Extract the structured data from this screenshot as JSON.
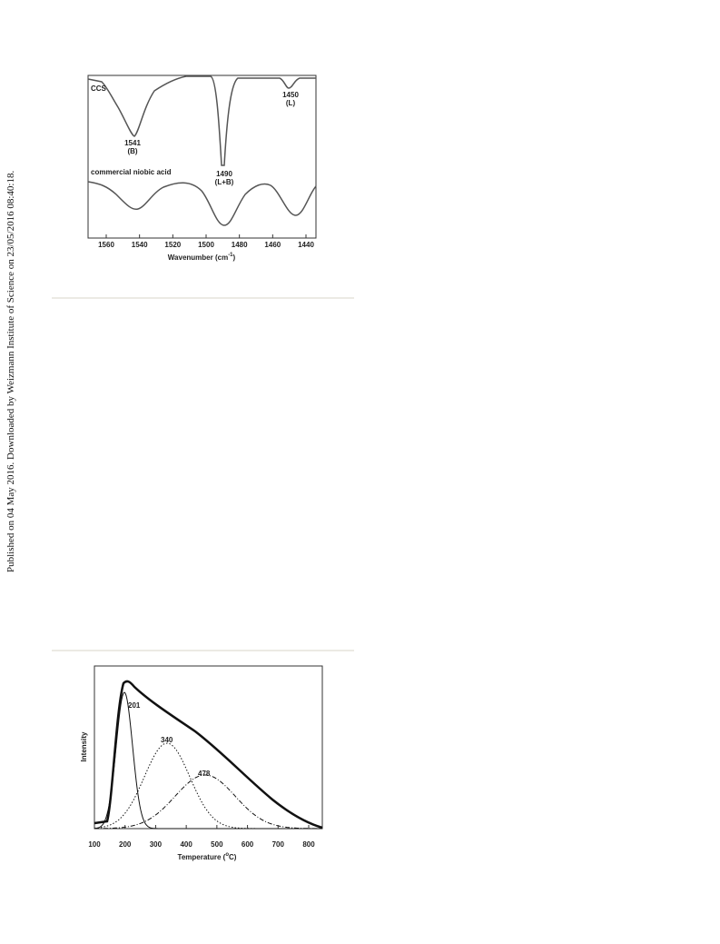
{
  "sidebar": "Published on 04 May 2016. Downloaded by Weizmann Institute of Science on 23/05/2016 08:40:18.",
  "figures": [
    {
      "x_ticks": [
        1560,
        1540,
        1520,
        1500,
        1480,
        1460,
        1440
      ],
      "x_label": "Wavenumber (cm",
      "x_label_sup": "-1",
      "x_label_end": ")",
      "annotations": [
        "CCS",
        "1541",
        "(B)",
        "1490",
        "(L+B)",
        "1450",
        "(L)",
        "commercial niobic acid"
      ]
    },
    {
      "x_ticks": [
        100,
        200,
        300,
        400,
        500,
        600,
        700,
        800
      ],
      "x_label": "Temperature (",
      "x_label_sup": "o",
      "x_label_end": "C)",
      "y_label": "Intensity",
      "annotations": [
        "201",
        "340",
        "478"
      ]
    }
  ]
}
